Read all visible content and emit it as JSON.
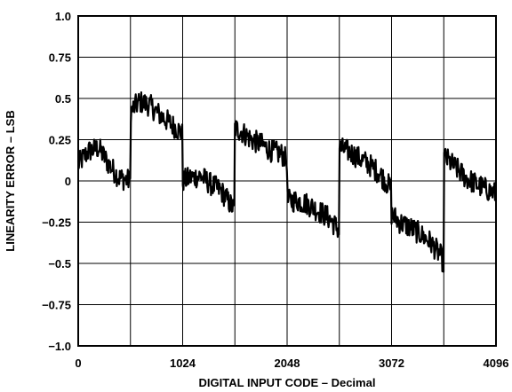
{
  "chart_data": {
    "type": "line",
    "xlabel": "DIGITAL INPUT CODE – Decimal",
    "ylabel": "LINEARITY ERROR – LSB",
    "xlim": [
      0,
      4096
    ],
    "ylim": [
      -1.0,
      1.0
    ],
    "x_ticks": [
      0,
      512,
      1024,
      1536,
      2048,
      2560,
      3072,
      3584,
      4096
    ],
    "x_tick_labels": [
      "0",
      "",
      "1024",
      "",
      "2048",
      "",
      "3072",
      "",
      "4096"
    ],
    "y_ticks": [
      -1.0,
      -0.75,
      -0.5,
      -0.25,
      0,
      0.25,
      0.5,
      0.75,
      1.0
    ],
    "y_tick_labels": [
      "−1.0",
      "−0.75",
      "−0.5",
      "−0.25",
      "0",
      "0.25",
      "0.5",
      "0.75",
      "1.0"
    ],
    "grid": true,
    "series": [
      {
        "color": "#000000",
        "x": [
          0,
          100,
          200,
          300,
          400,
          511,
          512,
          600,
          700,
          800,
          900,
          1000,
          1023,
          1024,
          1100,
          1200,
          1300,
          1400,
          1535,
          1536,
          1600,
          1700,
          1800,
          1900,
          2000,
          2047,
          2048,
          2150,
          2250,
          2350,
          2450,
          2559,
          2560,
          2650,
          2750,
          2850,
          2950,
          3071,
          3072,
          3150,
          3250,
          3350,
          3450,
          3550,
          3583,
          3584,
          3700,
          3800,
          3900,
          4000,
          4096
        ],
        "y": [
          0.1,
          0.18,
          0.2,
          0.1,
          0.02,
          0.0,
          0.42,
          0.48,
          0.46,
          0.4,
          0.35,
          0.3,
          0.28,
          0.0,
          0.02,
          0.03,
          -0.02,
          -0.06,
          -0.18,
          0.32,
          0.3,
          0.25,
          0.22,
          0.18,
          0.16,
          0.12,
          -0.12,
          -0.12,
          -0.14,
          -0.18,
          -0.22,
          -0.3,
          0.2,
          0.18,
          0.14,
          0.1,
          0.05,
          -0.05,
          -0.2,
          -0.25,
          -0.28,
          -0.32,
          -0.37,
          -0.45,
          -0.5,
          0.15,
          0.08,
          0.02,
          -0.02,
          -0.05,
          -0.08
        ]
      }
    ]
  }
}
